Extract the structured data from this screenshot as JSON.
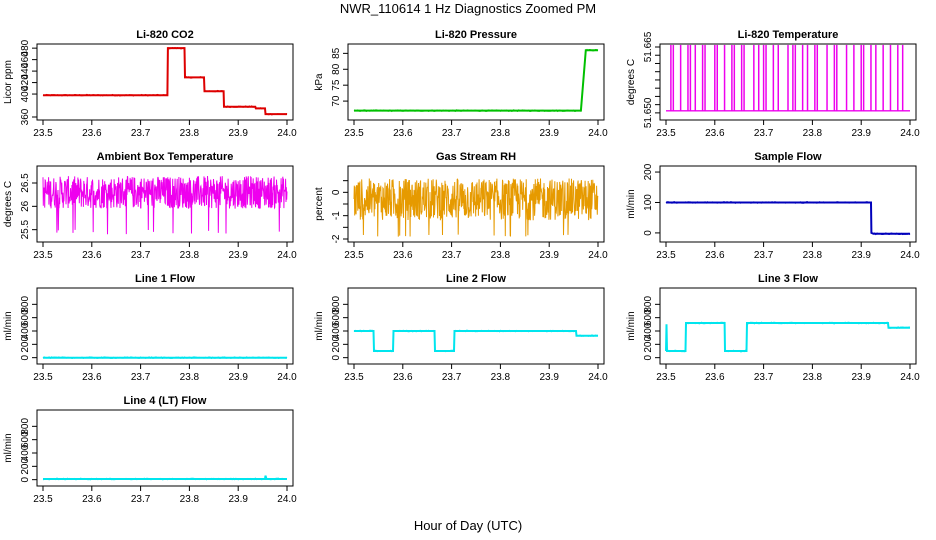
{
  "title": "NWR_110614  1 Hz Diagnostics Zoomed PM",
  "x_axis_title": "Hour of Day (UTC)",
  "chart_data": [
    {
      "type": "line",
      "title": "Li-820 CO2",
      "ylabel": "Licor ppm",
      "xlim": [
        23.5,
        24.0
      ],
      "ylim": [
        360,
        482
      ],
      "yticks": [
        360,
        400,
        420,
        440,
        460,
        480
      ],
      "xticks": [
        "23.5",
        "23.6",
        "23.7",
        "23.8",
        "23.9",
        "24.0"
      ],
      "color": "#dd0000",
      "series": [
        {
          "x": [
            23.5,
            23.755,
            23.756,
            23.79,
            23.791,
            23.83,
            23.831,
            23.87,
            23.871,
            23.935,
            23.936,
            23.955,
            23.956,
            24.0
          ],
          "y": [
            398,
            398,
            480,
            480,
            429,
            429,
            405,
            405,
            378,
            378,
            375,
            375,
            365,
            365
          ]
        }
      ]
    },
    {
      "type": "line",
      "title": "Li-820 Pressure",
      "ylabel": "kPa",
      "xlim": [
        23.5,
        24.0
      ],
      "ylim": [
        65,
        87
      ],
      "yticks": [
        70,
        75,
        80,
        85
      ],
      "xticks": [
        "23.5",
        "23.6",
        "23.7",
        "23.8",
        "23.9",
        "24.0"
      ],
      "color": "#00c000",
      "series": [
        {
          "x": [
            23.5,
            23.955,
            23.965,
            23.975,
            23.98,
            24.0
          ],
          "y": [
            67,
            67,
            67,
            86,
            86,
            86
          ]
        }
      ]
    },
    {
      "type": "line",
      "title": "Li-820 Temperature",
      "ylabel": "degrees C",
      "xlim": [
        23.5,
        24.0
      ],
      "ylim": [
        51.649,
        51.666
      ],
      "yticks": [
        51.65,
        51.652,
        51.654,
        51.656,
        51.658,
        51.66,
        51.662,
        51.664,
        51.666
      ],
      "ytick_labels": [
        "51.650",
        "",
        "",
        "",
        "",
        "",
        "",
        "",
        "51.665"
      ],
      "xticks": [
        "23.5",
        "23.6",
        "23.7",
        "23.8",
        "23.9",
        "24.0"
      ],
      "color": "#ee00ee",
      "baseline": 51.6505,
      "spike_top": 51.6665,
      "spikes_x": [
        23.51,
        23.515,
        23.53,
        23.545,
        23.55,
        23.56,
        23.575,
        23.58,
        23.6,
        23.605,
        23.62,
        23.635,
        23.64,
        23.655,
        23.66,
        23.68,
        23.69,
        23.7,
        23.705,
        23.72,
        23.73,
        23.75,
        23.76,
        23.765,
        23.78,
        23.79,
        23.805,
        23.81,
        23.83,
        23.845,
        23.85,
        23.87,
        23.885,
        23.9,
        23.905,
        23.92,
        23.93,
        23.945,
        23.96,
        23.975,
        23.985
      ]
    },
    {
      "type": "line",
      "title": "Ambient Box Temperature",
      "ylabel": "degrees C",
      "xlim": [
        23.5,
        24.0
      ],
      "ylim": [
        25.3,
        26.8
      ],
      "yticks": [
        25.5,
        26.0,
        26.5
      ],
      "xticks": [
        "23.5",
        "23.6",
        "23.7",
        "23.8",
        "23.9",
        "24.0"
      ],
      "color": "#ee00ee",
      "noise": {
        "mean": 26.3,
        "amplitude": 0.35,
        "dips_to": 25.4
      }
    },
    {
      "type": "line",
      "title": "Gas Stream RH",
      "ylabel": "percent",
      "xlim": [
        23.5,
        24.0
      ],
      "ylim": [
        -2.0,
        1.0
      ],
      "yticks": [
        -2,
        -1.5,
        -1,
        -0.5,
        0,
        0.5
      ],
      "ytick_labels": [
        "-2",
        "-1",
        "0"
      ],
      "xticks": [
        "23.5",
        "23.6",
        "23.7",
        "23.8",
        "23.9",
        "24.0"
      ],
      "color": "#e69a00",
      "noise": {
        "mean": -0.3,
        "amplitude": 0.9,
        "dips_to": -1.9
      }
    },
    {
      "type": "line",
      "title": "Sample Flow",
      "ylabel": "ml/min",
      "xlim": [
        23.5,
        24.0
      ],
      "ylim": [
        -20,
        210
      ],
      "yticks": [
        0,
        100,
        200
      ],
      "xticks": [
        "23.5",
        "23.6",
        "23.7",
        "23.8",
        "23.9",
        "24.0"
      ],
      "color": "#0000bb",
      "series": [
        {
          "x": [
            23.5,
            23.92,
            23.921,
            23.925,
            24.0
          ],
          "y": [
            100,
            100,
            0,
            -3,
            -3
          ]
        }
      ]
    },
    {
      "type": "line",
      "title": "Line 1 Flow",
      "ylabel": "ml/min",
      "xlim": [
        23.5,
        24.0
      ],
      "ylim": [
        -50,
        1000
      ],
      "yticks": [
        0,
        200,
        400,
        600,
        800
      ],
      "xticks": [
        "23.5",
        "23.6",
        "23.7",
        "23.8",
        "23.9",
        "24.0"
      ],
      "color": "#00e5ee",
      "series": [
        {
          "x": [
            23.5,
            24.0
          ],
          "y": [
            0,
            0
          ]
        }
      ]
    },
    {
      "type": "line",
      "title": "Line 2 Flow",
      "ylabel": "ml/min",
      "xlim": [
        23.5,
        24.0
      ],
      "ylim": [
        -50,
        1000
      ],
      "yticks": [
        0,
        200,
        400,
        600,
        800
      ],
      "xticks": [
        "23.5",
        "23.6",
        "23.7",
        "23.8",
        "23.9",
        "24.0"
      ],
      "color": "#00e5ee",
      "series": [
        {
          "x": [
            23.5,
            23.54,
            23.541,
            23.58,
            23.581,
            23.665,
            23.666,
            23.705,
            23.706,
            23.955,
            23.956,
            24.0
          ],
          "y": [
            400,
            400,
            100,
            100,
            400,
            400,
            100,
            100,
            400,
            400,
            330,
            330
          ]
        }
      ]
    },
    {
      "type": "line",
      "title": "Line 3 Flow",
      "ylabel": "ml/min",
      "xlim": [
        23.5,
        24.0
      ],
      "ylim": [
        -50,
        1000
      ],
      "yticks": [
        0,
        200,
        400,
        600,
        800
      ],
      "xticks": [
        "23.5",
        "23.6",
        "23.7",
        "23.8",
        "23.9",
        "24.0"
      ],
      "color": "#00e5ee",
      "series": [
        {
          "x": [
            23.5,
            23.501,
            23.502,
            23.54,
            23.541,
            23.62,
            23.621,
            23.665,
            23.666,
            23.955,
            23.956,
            24.0
          ],
          "y": [
            100,
            500,
            100,
            100,
            520,
            520,
            100,
            100,
            520,
            520,
            450,
            450
          ]
        }
      ]
    },
    {
      "type": "line",
      "title": "Line 4 (LT) Flow",
      "ylabel": "ml/min",
      "xlim": [
        23.5,
        24.0
      ],
      "ylim": [
        -50,
        1000
      ],
      "yticks": [
        0,
        200,
        400,
        600,
        800
      ],
      "xticks": [
        "23.5",
        "23.6",
        "23.7",
        "23.8",
        "23.9",
        "24.0"
      ],
      "color": "#00e5ee",
      "series": [
        {
          "x": [
            23.5,
            23.955,
            23.956,
            23.958,
            23.96,
            24.0
          ],
          "y": [
            10,
            10,
            60,
            10,
            10,
            10
          ]
        }
      ]
    }
  ]
}
